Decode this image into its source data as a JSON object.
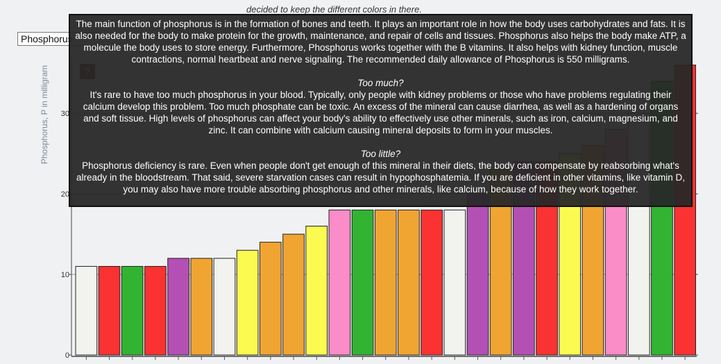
{
  "caption": "decided to keep the different colors in there.",
  "nutrient_select": {
    "value": "Phosphorus"
  },
  "help_button": {
    "label": "?"
  },
  "tooltip": {
    "intro": "The main function of phosphorus is in the formation of bones and teeth. It plays an important role in how the body uses carbohydrates and fats. It is also needed for the body to make protein for the growth, maintenance, and repair of cells and tissues. Phosphorus also helps the body make ATP, a molecule the body uses to store energy. Furthermore, Phosphorus works together with the B vitamins. It also helps with kidney function, muscle contractions, normal heartbeat and nerve signaling. The recommended daily allowance of Phosphorus is 550 milligrams.",
    "too_much_heading": "Too much?",
    "too_much_text": "It's rare to have too much phosphorus in your blood. Typically, only people with kidney problems or those who have problems regulating their calcium develop this problem. Too much phosphate can be toxic. An excess of the mineral can cause diarrhea, as well as a hardening of organs and soft tissue. High levels of phosphorus can affect your body's ability to effectively use other minerals, such as iron, calcium, magnesium, and zinc. It can combine with calcium causing mineral deposits to form in your muscles.",
    "too_little_heading": "Too little?",
    "too_little_text": "Phosphorus deficiency is rare. Even when people don't get enough of this mineral in their diets, the body can compensate by reabsorbing what's already in the bloodstream. That said, severe starvation cases can result in hypophosphatemia. If you are deficient in other vitamins, like vitamin D, you may also have more trouble absorbing phosphorus and other minerals, like calcium, because of how they work together."
  },
  "chart_data": {
    "type": "bar",
    "ylabel": "Phosphorus, P in milligram",
    "ylim": [
      0,
      37
    ],
    "yticks": [
      0,
      10,
      20,
      30
    ],
    "grid": true,
    "values": [
      11,
      11,
      11,
      11,
      12,
      12,
      12,
      13,
      14,
      15,
      16,
      18,
      18,
      18,
      18,
      18,
      18,
      20,
      23,
      24,
      24,
      25,
      26,
      28,
      30,
      34,
      36
    ],
    "colors": [
      "#f2f2ee",
      "#fa3232",
      "#32b432",
      "#fa3232",
      "#b450b4",
      "#f0a532",
      "#f2f2ee",
      "#fafa50",
      "#f0a532",
      "#f0a532",
      "#fafa50",
      "#fa8cc8",
      "#32b432",
      "#f0a532",
      "#f0a532",
      "#fa3232",
      "#f2f2ee",
      "#b450b4",
      "#f0a532",
      "#b450b4",
      "#fa3232",
      "#fafa50",
      "#f0a532",
      "#fa8cc8",
      "#f2f2ee",
      "#32b432",
      "#fa3232"
    ]
  }
}
